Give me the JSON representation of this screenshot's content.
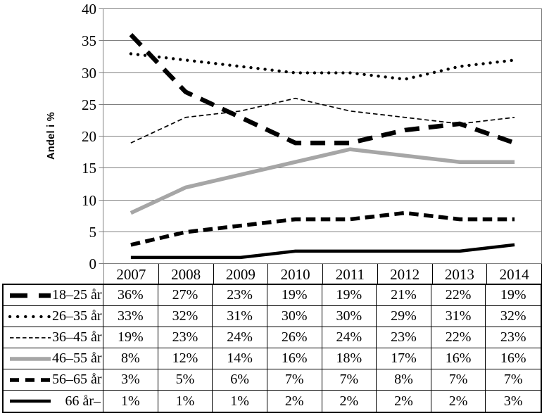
{
  "chart_data": {
    "type": "line",
    "title": "",
    "ylabel": "Andel i %",
    "xlabel": "",
    "ylim": [
      0,
      40
    ],
    "ytick_step": 5,
    "grid": true,
    "unit": "%",
    "legend_position": "table-left-column",
    "categories": [
      "2007",
      "2008",
      "2009",
      "2010",
      "2011",
      "2012",
      "2013",
      "2014"
    ],
    "series": [
      {
        "name": "18–25 år",
        "values": [
          36,
          27,
          23,
          19,
          19,
          21,
          22,
          19
        ],
        "style": {
          "color": "#000000",
          "pattern": "long-dash",
          "width": 6.5
        }
      },
      {
        "name": "26–35 år",
        "values": [
          33,
          32,
          31,
          30,
          30,
          29,
          31,
          32
        ],
        "style": {
          "color": "#000000",
          "pattern": "dotted",
          "width": 4.3
        }
      },
      {
        "name": "36–45 år",
        "values": [
          19,
          23,
          24,
          26,
          24,
          23,
          22,
          23
        ],
        "style": {
          "color": "#000000",
          "pattern": "short-dash",
          "width": 1.7
        }
      },
      {
        "name": "46–55 år",
        "values": [
          8,
          12,
          14,
          16,
          18,
          17,
          16,
          16
        ],
        "style": {
          "color": "#a6a6a6",
          "pattern": "solid",
          "width": 5.5
        }
      },
      {
        "name": "56–65 år",
        "values": [
          3,
          5,
          6,
          7,
          7,
          8,
          7,
          7
        ],
        "style": {
          "color": "#000000",
          "pattern": "medium-dash",
          "width": 5.5
        }
      },
      {
        "name": "66 år–",
        "values": [
          1,
          1,
          1,
          2,
          2,
          2,
          2,
          3
        ],
        "style": {
          "color": "#000000",
          "pattern": "solid",
          "width": 4.5
        }
      }
    ],
    "colors": {
      "gridline": "#808080",
      "axis": "#808080",
      "table_border": "#000000",
      "text": "#000000",
      "background": "#ffffff"
    }
  }
}
